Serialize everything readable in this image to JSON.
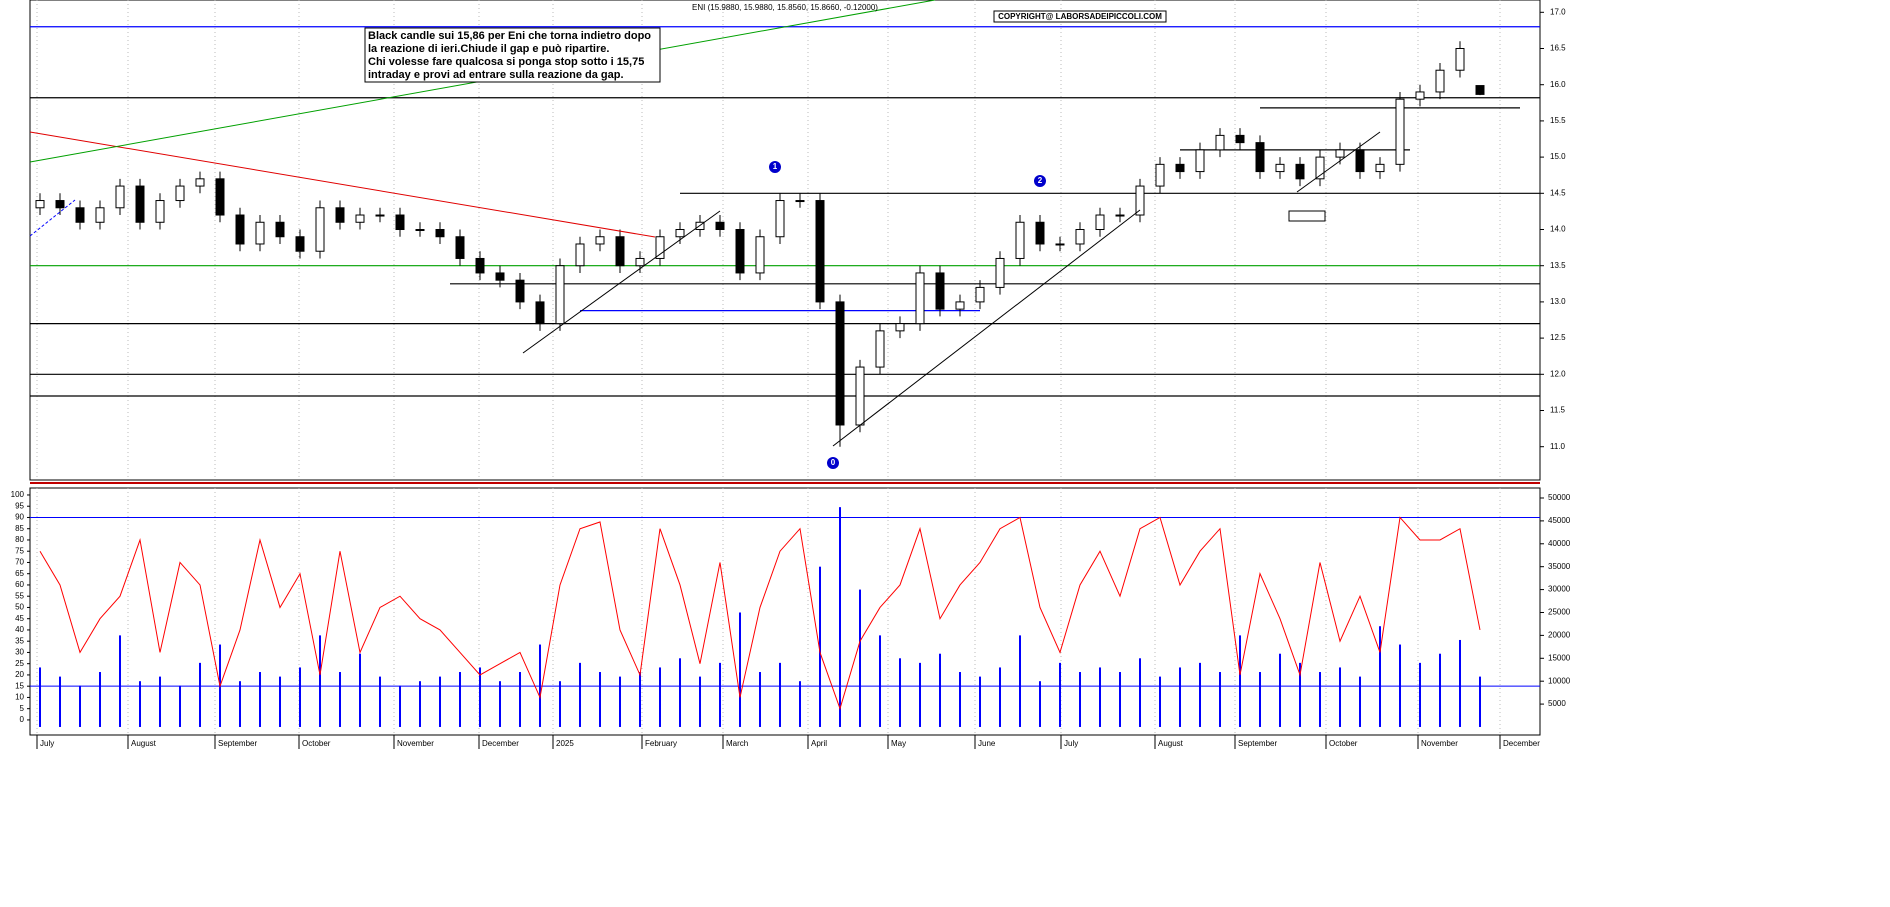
{
  "chart_data": {
    "type": "candlestick",
    "title": "ENI (15.9880, 15.9880, 15.8560, 15.8660, -0.12000)",
    "copyright": "COPYRIGHT@ LABORSADEIPICCOLI.COM",
    "annotation": [
      "Black candle sui 15,86 per Eni che torna indietro dopo",
      "la reazione di ieri.Chiude il gap e può ripartire.",
      "Chi volesse fare qualcosa si ponga stop sotto i 15,75",
      "intraday e provi ad entrare sulla reazione da gap."
    ],
    "markers": [
      "1",
      "2",
      "0"
    ],
    "x": [
      0,
      1,
      2,
      3,
      4,
      5,
      6,
      7,
      8,
      9,
      10,
      11,
      12,
      13,
      14,
      15,
      16,
      17,
      18,
      19,
      20,
      21,
      22,
      23,
      24,
      25,
      26,
      27,
      28,
      29,
      30,
      31,
      32,
      33,
      34,
      35,
      36,
      37,
      38,
      39,
      40,
      41,
      42,
      43,
      44,
      45,
      46,
      47,
      48,
      49,
      50,
      51,
      52,
      53,
      54,
      55,
      56,
      57,
      58,
      59,
      60,
      61,
      62,
      63,
      64,
      65,
      66,
      67,
      68,
      69,
      70,
      71,
      72
    ],
    "open": [
      14.3,
      14.4,
      14.3,
      14.1,
      14.3,
      14.6,
      14.1,
      14.4,
      14.6,
      14.7,
      14.2,
      13.8,
      14.1,
      13.9,
      13.7,
      14.3,
      14.1,
      14.2,
      14.2,
      14.0,
      14.0,
      13.9,
      13.6,
      13.4,
      13.3,
      13.0,
      12.7,
      13.5,
      13.8,
      13.9,
      13.5,
      13.6,
      13.9,
      14.0,
      14.1,
      14.0,
      13.4,
      13.9,
      14.4,
      14.4,
      13.0,
      11.3,
      12.1,
      12.6,
      12.7,
      13.4,
      12.9,
      13.0,
      13.2,
      13.6,
      14.1,
      13.8,
      13.8,
      14.0,
      14.2,
      14.2,
      14.6,
      14.9,
      14.8,
      15.1,
      15.3,
      15.2,
      14.8,
      14.9,
      14.7,
      15.0,
      15.1,
      14.8,
      14.9,
      15.8,
      15.9,
      16.2,
      15.988
    ],
    "high": [
      14.5,
      14.5,
      14.4,
      14.4,
      14.7,
      14.7,
      14.5,
      14.7,
      14.8,
      14.8,
      14.3,
      14.2,
      14.2,
      14.0,
      14.4,
      14.4,
      14.3,
      14.3,
      14.3,
      14.1,
      14.1,
      14.0,
      13.7,
      13.5,
      13.4,
      13.1,
      13.6,
      13.9,
      14.0,
      14.0,
      13.7,
      14.0,
      14.1,
      14.2,
      14.2,
      14.1,
      14.0,
      14.5,
      14.5,
      14.5,
      13.1,
      12.2,
      12.7,
      12.8,
      13.5,
      13.5,
      13.1,
      13.3,
      13.7,
      14.2,
      14.2,
      13.9,
      14.1,
      14.3,
      14.3,
      14.7,
      15.0,
      15.0,
      15.2,
      15.4,
      15.4,
      15.3,
      15.0,
      15.0,
      15.1,
      15.2,
      15.2,
      15.0,
      15.9,
      16.0,
      16.3,
      16.6,
      15.988
    ],
    "low": [
      14.2,
      14.2,
      14.0,
      14.0,
      14.2,
      14.0,
      14.0,
      14.3,
      14.5,
      14.1,
      13.7,
      13.7,
      13.8,
      13.6,
      13.6,
      14.0,
      14.0,
      14.1,
      13.9,
      13.9,
      13.8,
      13.5,
      13.3,
      13.2,
      12.9,
      12.6,
      12.6,
      13.4,
      13.7,
      13.4,
      13.4,
      13.5,
      13.8,
      13.9,
      13.9,
      13.3,
      13.3,
      13.8,
      14.3,
      12.9,
      11.0,
      11.2,
      12.0,
      12.5,
      12.6,
      12.8,
      12.8,
      12.9,
      13.1,
      13.5,
      13.7,
      13.7,
      13.7,
      13.9,
      14.1,
      14.1,
      14.5,
      14.7,
      14.7,
      15.0,
      15.1,
      14.7,
      14.7,
      14.6,
      14.6,
      14.9,
      14.7,
      14.7,
      14.8,
      15.7,
      15.8,
      16.1,
      15.856
    ],
    "close": [
      14.4,
      14.3,
      14.1,
      14.3,
      14.6,
      14.1,
      14.4,
      14.6,
      14.7,
      14.2,
      13.8,
      14.1,
      13.9,
      13.7,
      14.3,
      14.1,
      14.2,
      14.2,
      14.0,
      14.0,
      13.9,
      13.6,
      13.4,
      13.3,
      13.0,
      12.7,
      13.5,
      13.8,
      13.9,
      13.5,
      13.6,
      13.9,
      14.0,
      14.1,
      14.0,
      13.4,
      13.9,
      14.4,
      14.4,
      13.0,
      11.3,
      12.1,
      12.6,
      12.7,
      13.4,
      12.9,
      13.0,
      13.2,
      13.6,
      14.1,
      13.8,
      13.8,
      14.0,
      14.2,
      14.2,
      14.6,
      14.9,
      14.8,
      15.1,
      15.3,
      15.2,
      14.8,
      14.9,
      14.7,
      15.0,
      15.1,
      14.8,
      14.9,
      15.8,
      15.9,
      16.2,
      16.5,
      15.866
    ],
    "xlim": [
      -0.5,
      75
    ],
    "xticks": [
      {
        "value": -0.15,
        "label": "July"
      },
      {
        "value": 4.4,
        "label": "August"
      },
      {
        "value": 8.75,
        "label": "September"
      },
      {
        "value": 12.95,
        "label": "October"
      },
      {
        "value": 17.7,
        "label": "November"
      },
      {
        "value": 21.95,
        "label": "December"
      },
      {
        "value": 25.65,
        "label": "2025"
      },
      {
        "value": 30.1,
        "label": "February"
      },
      {
        "value": 34.15,
        "label": "March"
      },
      {
        "value": 38.4,
        "label": "April"
      },
      {
        "value": 42.4,
        "label": "May"
      },
      {
        "value": 46.75,
        "label": "June"
      },
      {
        "value": 51.05,
        "label": "July"
      },
      {
        "value": 55.75,
        "label": "August"
      },
      {
        "value": 59.75,
        "label": "September"
      },
      {
        "value": 64.3,
        "label": "October"
      },
      {
        "value": 68.9,
        "label": "November"
      },
      {
        "value": 73,
        "label": "December"
      }
    ],
    "grid": true,
    "ylim": [
      10.54,
      17.17
    ],
    "yticks": [
      {
        "value": 11,
        "label": "11.0"
      },
      {
        "value": 11.5,
        "label": "11.5"
      },
      {
        "value": 12,
        "label": "12.0"
      },
      {
        "value": 12.5,
        "label": "12.5"
      },
      {
        "value": 13,
        "label": "13.0"
      },
      {
        "value": 13.5,
        "label": "13.5"
      },
      {
        "value": 14,
        "label": "14.0"
      },
      {
        "value": 14.5,
        "label": "14.5"
      },
      {
        "value": 15,
        "label": "15.0"
      },
      {
        "value": 15.5,
        "label": "15.5"
      },
      {
        "value": 16,
        "label": "16.0"
      },
      {
        "value": 16.5,
        "label": "16.5"
      },
      {
        "value": 17,
        "label": "17.0"
      }
    ],
    "levels": [
      {
        "value": 16.8,
        "color": "#0000ff"
      },
      {
        "value": 15.82,
        "color": "#000000"
      },
      {
        "value": 15.68,
        "color": "#000000",
        "from": 61,
        "to": 74
      },
      {
        "value": 15.1,
        "color": "#000000",
        "from": 57,
        "to": 68.5
      },
      {
        "value": 14.5,
        "color": "#000000",
        "from": 32,
        "to": 75
      },
      {
        "value": 13.5,
        "color": "#00a000"
      },
      {
        "value": 13.25,
        "color": "#000000",
        "from": 20.5,
        "to": 75
      },
      {
        "value": 12.88,
        "color": "#0000ff",
        "from": 27,
        "to": 47
      },
      {
        "value": 12.7,
        "color": "#000000"
      },
      {
        "value": 12.0,
        "color": "#000000"
      },
      {
        "value": 11.7,
        "color": "#000000"
      }
    ],
    "indicator": {
      "type": "line",
      "color": "#ff0000",
      "values": [
        75,
        60,
        30,
        45,
        55,
        80,
        30,
        70,
        60,
        15,
        40,
        80,
        50,
        65,
        20,
        75,
        30,
        50,
        55,
        45,
        40,
        30,
        20,
        25,
        30,
        10,
        60,
        85,
        88,
        40,
        20,
        85,
        60,
        25,
        70,
        10,
        50,
        75,
        85,
        30,
        5,
        35,
        50,
        60,
        85,
        45,
        60,
        70,
        85,
        90,
        50,
        30,
        60,
        75,
        55,
        85,
        90,
        60,
        75,
        85,
        20,
        65,
        45,
        20,
        70,
        35,
        55,
        30,
        90,
        80,
        80,
        85,
        40
      ],
      "ylim": [
        -6.7,
        103.1
      ],
      "yticks": [
        0,
        5,
        10,
        15,
        20,
        25,
        30,
        35,
        40,
        45,
        50,
        55,
        60,
        65,
        70,
        75,
        80,
        85,
        90,
        95,
        100
      ],
      "levels": [
        {
          "value": 90,
          "color": "#0000ff"
        },
        {
          "value": 15,
          "color": "#0000ff"
        }
      ]
    },
    "volume": {
      "type": "bar",
      "color": "#0000ff",
      "values": [
        13000,
        11000,
        9000,
        12000,
        20000,
        10000,
        11000,
        9000,
        14000,
        18000,
        10000,
        12000,
        11000,
        13000,
        20000,
        12000,
        16000,
        11000,
        9000,
        10000,
        11000,
        12000,
        13000,
        10000,
        12000,
        18000,
        10000,
        14000,
        12000,
        11000,
        12000,
        13000,
        15000,
        11000,
        14000,
        25000,
        12000,
        14000,
        10000,
        35000,
        48000,
        30000,
        20000,
        15000,
        14000,
        16000,
        12000,
        11000,
        13000,
        20000,
        10000,
        14000,
        12000,
        13000,
        12000,
        15000,
        11000,
        13000,
        14000,
        12000,
        20000,
        12000,
        16000,
        14000,
        12000,
        13000,
        11000,
        22000,
        18000,
        14000,
        16000,
        19000,
        11000
      ],
      "y2lim": [
        -1750,
        52180
      ],
      "y2ticks": [
        5000,
        10000,
        15000,
        20000,
        25000,
        30000,
        35000,
        40000,
        45000,
        50000
      ]
    }
  }
}
